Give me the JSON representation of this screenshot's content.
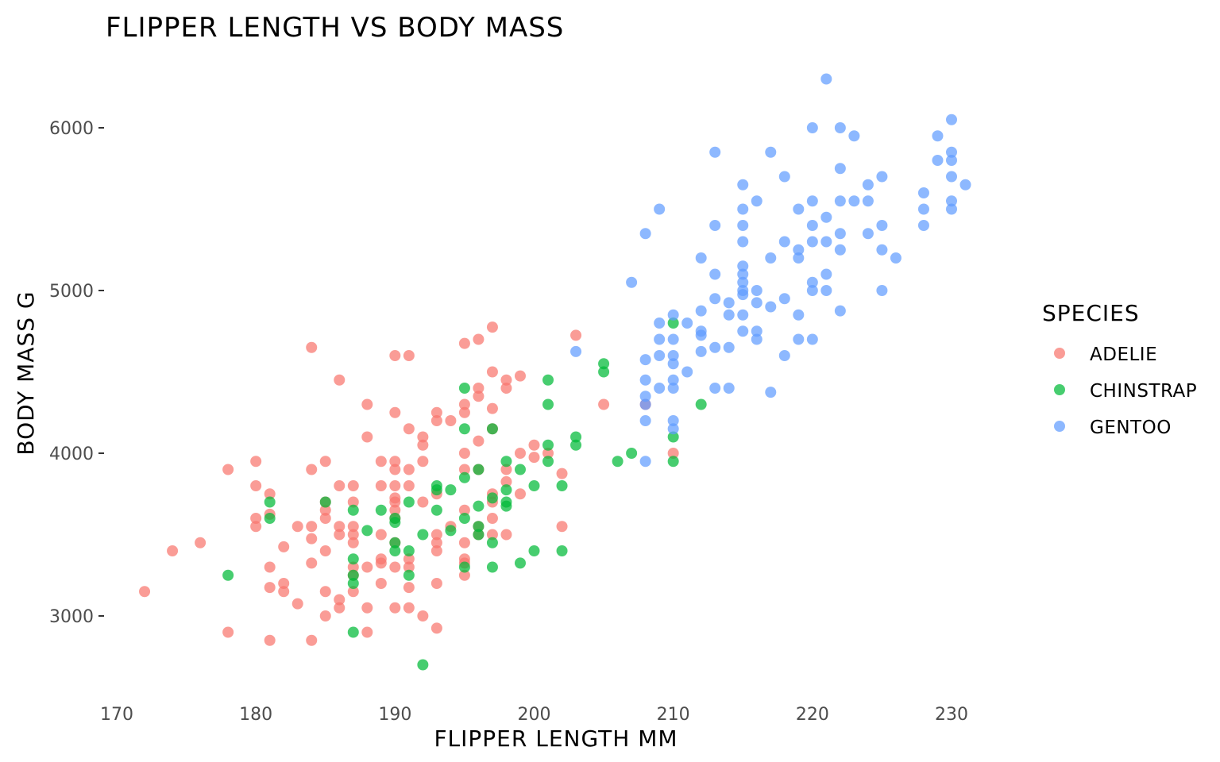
{
  "chart_data": {
    "type": "scatter",
    "title": "FLIPPER LENGTH VS BODY MASS",
    "xlabel": "FLIPPER LENGTH MM",
    "ylabel": "BODY MASS G",
    "xlim": [
      170,
      232
    ],
    "ylim": [
      2600,
      6400
    ],
    "xticks": [
      170,
      180,
      190,
      200,
      210,
      220,
      230
    ],
    "yticks": [
      3000,
      4000,
      5000,
      6000
    ],
    "grid": false,
    "legend": {
      "title": "SPECIES",
      "position": "right"
    },
    "series": [
      {
        "name": "ADELIE",
        "color": "#F8766D",
        "points": [
          [
            172,
            3150
          ],
          [
            174,
            3400
          ],
          [
            176,
            3450
          ],
          [
            178,
            2900
          ],
          [
            178,
            3900
          ],
          [
            180,
            3600
          ],
          [
            180,
            3550
          ],
          [
            180,
            3800
          ],
          [
            180,
            3950
          ],
          [
            181,
            2850
          ],
          [
            181,
            3300
          ],
          [
            181,
            3175
          ],
          [
            181,
            3625
          ],
          [
            181,
            3750
          ],
          [
            182,
            3150
          ],
          [
            182,
            3200
          ],
          [
            182,
            3425
          ],
          [
            183,
            3075
          ],
          [
            183,
            3550
          ],
          [
            184,
            2850
          ],
          [
            184,
            3325
          ],
          [
            184,
            3475
          ],
          [
            184,
            3550
          ],
          [
            184,
            3900
          ],
          [
            184,
            4650
          ],
          [
            185,
            3000
          ],
          [
            185,
            3150
          ],
          [
            185,
            3400
          ],
          [
            185,
            3600
          ],
          [
            185,
            3650
          ],
          [
            185,
            3700
          ],
          [
            185,
            3950
          ],
          [
            186,
            3050
          ],
          [
            186,
            3100
          ],
          [
            186,
            3500
          ],
          [
            186,
            3550
          ],
          [
            186,
            3800
          ],
          [
            186,
            4450
          ],
          [
            187,
            3150
          ],
          [
            187,
            3250
          ],
          [
            187,
            3300
          ],
          [
            187,
            3450
          ],
          [
            187,
            3500
          ],
          [
            187,
            3550
          ],
          [
            187,
            3700
          ],
          [
            187,
            3800
          ],
          [
            188,
            2900
          ],
          [
            188,
            3050
          ],
          [
            188,
            3300
          ],
          [
            188,
            4100
          ],
          [
            188,
            4300
          ],
          [
            189,
            3200
          ],
          [
            189,
            3325
          ],
          [
            189,
            3350
          ],
          [
            189,
            3500
          ],
          [
            189,
            3800
          ],
          [
            189,
            3950
          ],
          [
            190,
            3050
          ],
          [
            190,
            3300
          ],
          [
            190,
            3450
          ],
          [
            190,
            3600
          ],
          [
            190,
            3650
          ],
          [
            190,
            3700
          ],
          [
            190,
            3725
          ],
          [
            190,
            3800
          ],
          [
            190,
            3900
          ],
          [
            190,
            3950
          ],
          [
            190,
            4250
          ],
          [
            190,
            4600
          ],
          [
            191,
            3050
          ],
          [
            191,
            3175
          ],
          [
            191,
            3300
          ],
          [
            191,
            3350
          ],
          [
            191,
            3800
          ],
          [
            191,
            3900
          ],
          [
            191,
            4150
          ],
          [
            191,
            4600
          ],
          [
            192,
            3000
          ],
          [
            192,
            3700
          ],
          [
            192,
            3950
          ],
          [
            192,
            4050
          ],
          [
            192,
            4100
          ],
          [
            193,
            2925
          ],
          [
            193,
            3200
          ],
          [
            193,
            3400
          ],
          [
            193,
            3450
          ],
          [
            193,
            3500
          ],
          [
            193,
            3750
          ],
          [
            193,
            4200
          ],
          [
            193,
            4250
          ],
          [
            194,
            3550
          ],
          [
            194,
            4200
          ],
          [
            195,
            3250
          ],
          [
            195,
            3325
          ],
          [
            195,
            3350
          ],
          [
            195,
            3450
          ],
          [
            195,
            3650
          ],
          [
            195,
            3900
          ],
          [
            195,
            4000
          ],
          [
            195,
            4250
          ],
          [
            195,
            4300
          ],
          [
            195,
            4675
          ],
          [
            196,
            3500
          ],
          [
            196,
            3550
          ],
          [
            196,
            3900
          ],
          [
            196,
            4075
          ],
          [
            196,
            4350
          ],
          [
            196,
            4400
          ],
          [
            196,
            4700
          ],
          [
            197,
            3500
          ],
          [
            197,
            3600
          ],
          [
            197,
            3700
          ],
          [
            197,
            3750
          ],
          [
            197,
            4150
          ],
          [
            197,
            4275
          ],
          [
            197,
            4500
          ],
          [
            197,
            4775
          ],
          [
            198,
            3500
          ],
          [
            198,
            3825
          ],
          [
            198,
            3900
          ],
          [
            198,
            4400
          ],
          [
            198,
            4450
          ],
          [
            199,
            3750
          ],
          [
            199,
            4000
          ],
          [
            199,
            4475
          ],
          [
            200,
            3975
          ],
          [
            200,
            4050
          ],
          [
            201,
            4000
          ],
          [
            202,
            3550
          ],
          [
            202,
            3875
          ],
          [
            203,
            4725
          ],
          [
            205,
            4300
          ],
          [
            208,
            4300
          ],
          [
            210,
            4000
          ]
        ]
      },
      {
        "name": "CHINSTRAP",
        "color": "#00BA38",
        "points": [
          [
            178,
            3250
          ],
          [
            181,
            3600
          ],
          [
            181,
            3700
          ],
          [
            185,
            3700
          ],
          [
            187,
            2900
          ],
          [
            187,
            3200
          ],
          [
            187,
            3250
          ],
          [
            187,
            3350
          ],
          [
            187,
            3650
          ],
          [
            188,
            3525
          ],
          [
            189,
            3650
          ],
          [
            190,
            3400
          ],
          [
            190,
            3450
          ],
          [
            190,
            3575
          ],
          [
            190,
            3600
          ],
          [
            191,
            3250
          ],
          [
            191,
            3400
          ],
          [
            191,
            3700
          ],
          [
            192,
            2700
          ],
          [
            192,
            3500
          ],
          [
            193,
            3650
          ],
          [
            193,
            3775
          ],
          [
            193,
            3800
          ],
          [
            194,
            3525
          ],
          [
            194,
            3775
          ],
          [
            195,
            3300
          ],
          [
            195,
            3600
          ],
          [
            195,
            3850
          ],
          [
            195,
            4150
          ],
          [
            195,
            4400
          ],
          [
            196,
            3500
          ],
          [
            196,
            3550
          ],
          [
            196,
            3675
          ],
          [
            196,
            3900
          ],
          [
            197,
            3300
          ],
          [
            197,
            3450
          ],
          [
            197,
            3725
          ],
          [
            197,
            4150
          ],
          [
            198,
            3675
          ],
          [
            198,
            3700
          ],
          [
            198,
            3775
          ],
          [
            198,
            3950
          ],
          [
            199,
            3325
          ],
          [
            199,
            3900
          ],
          [
            200,
            3400
          ],
          [
            200,
            3800
          ],
          [
            201,
            3950
          ],
          [
            201,
            4050
          ],
          [
            201,
            4300
          ],
          [
            201,
            4450
          ],
          [
            202,
            3400
          ],
          [
            202,
            3800
          ],
          [
            203,
            4050
          ],
          [
            203,
            4100
          ],
          [
            205,
            4500
          ],
          [
            205,
            4550
          ],
          [
            206,
            3950
          ],
          [
            207,
            4000
          ],
          [
            210,
            3950
          ],
          [
            210,
            4100
          ],
          [
            210,
            4800
          ],
          [
            212,
            4300
          ]
        ]
      },
      {
        "name": "GENTOO",
        "color": "#619CFF",
        "points": [
          [
            203,
            4625
          ],
          [
            207,
            5050
          ],
          [
            208,
            3950
          ],
          [
            208,
            4200
          ],
          [
            208,
            4300
          ],
          [
            208,
            4350
          ],
          [
            208,
            4450
          ],
          [
            208,
            4575
          ],
          [
            208,
            5350
          ],
          [
            209,
            4400
          ],
          [
            209,
            4600
          ],
          [
            209,
            4700
          ],
          [
            209,
            4800
          ],
          [
            209,
            5500
          ],
          [
            210,
            4150
          ],
          [
            210,
            4200
          ],
          [
            210,
            4400
          ],
          [
            210,
            4450
          ],
          [
            210,
            4550
          ],
          [
            210,
            4600
          ],
          [
            210,
            4700
          ],
          [
            210,
            4850
          ],
          [
            211,
            4500
          ],
          [
            211,
            4800
          ],
          [
            212,
            4625
          ],
          [
            212,
            4725
          ],
          [
            212,
            4750
          ],
          [
            212,
            4875
          ],
          [
            212,
            5200
          ],
          [
            213,
            4400
          ],
          [
            213,
            4650
          ],
          [
            213,
            4950
          ],
          [
            213,
            5100
          ],
          [
            213,
            5400
          ],
          [
            213,
            5850
          ],
          [
            214,
            4400
          ],
          [
            214,
            4650
          ],
          [
            214,
            4850
          ],
          [
            214,
            4925
          ],
          [
            215,
            4750
          ],
          [
            215,
            4850
          ],
          [
            215,
            4975
          ],
          [
            215,
            5000
          ],
          [
            215,
            5050
          ],
          [
            215,
            5100
          ],
          [
            215,
            5150
          ],
          [
            215,
            5300
          ],
          [
            215,
            5400
          ],
          [
            215,
            5500
          ],
          [
            215,
            5650
          ],
          [
            216,
            4700
          ],
          [
            216,
            4750
          ],
          [
            216,
            4925
          ],
          [
            216,
            5000
          ],
          [
            216,
            5550
          ],
          [
            217,
            4375
          ],
          [
            217,
            4900
          ],
          [
            217,
            5200
          ],
          [
            217,
            5850
          ],
          [
            218,
            4600
          ],
          [
            218,
            4950
          ],
          [
            218,
            5300
          ],
          [
            218,
            5700
          ],
          [
            219,
            4700
          ],
          [
            219,
            4850
          ],
          [
            219,
            5200
          ],
          [
            219,
            5250
          ],
          [
            219,
            5500
          ],
          [
            220,
            4700
          ],
          [
            220,
            5000
          ],
          [
            220,
            5050
          ],
          [
            220,
            5300
          ],
          [
            220,
            5400
          ],
          [
            220,
            5550
          ],
          [
            220,
            6000
          ],
          [
            221,
            5000
          ],
          [
            221,
            5100
          ],
          [
            221,
            5300
          ],
          [
            221,
            5450
          ],
          [
            221,
            6300
          ],
          [
            222,
            4875
          ],
          [
            222,
            5250
          ],
          [
            222,
            5350
          ],
          [
            222,
            5550
          ],
          [
            222,
            5750
          ],
          [
            222,
            6000
          ],
          [
            223,
            5550
          ],
          [
            223,
            5950
          ],
          [
            224,
            5350
          ],
          [
            224,
            5550
          ],
          [
            224,
            5650
          ],
          [
            225,
            5000
          ],
          [
            225,
            5250
          ],
          [
            225,
            5400
          ],
          [
            225,
            5700
          ],
          [
            226,
            5200
          ],
          [
            228,
            5400
          ],
          [
            228,
            5500
          ],
          [
            228,
            5600
          ],
          [
            229,
            5800
          ],
          [
            229,
            5950
          ],
          [
            230,
            5500
          ],
          [
            230,
            5550
          ],
          [
            230,
            5700
          ],
          [
            230,
            5800
          ],
          [
            230,
            5850
          ],
          [
            230,
            6050
          ],
          [
            231,
            5650
          ]
        ]
      }
    ]
  }
}
